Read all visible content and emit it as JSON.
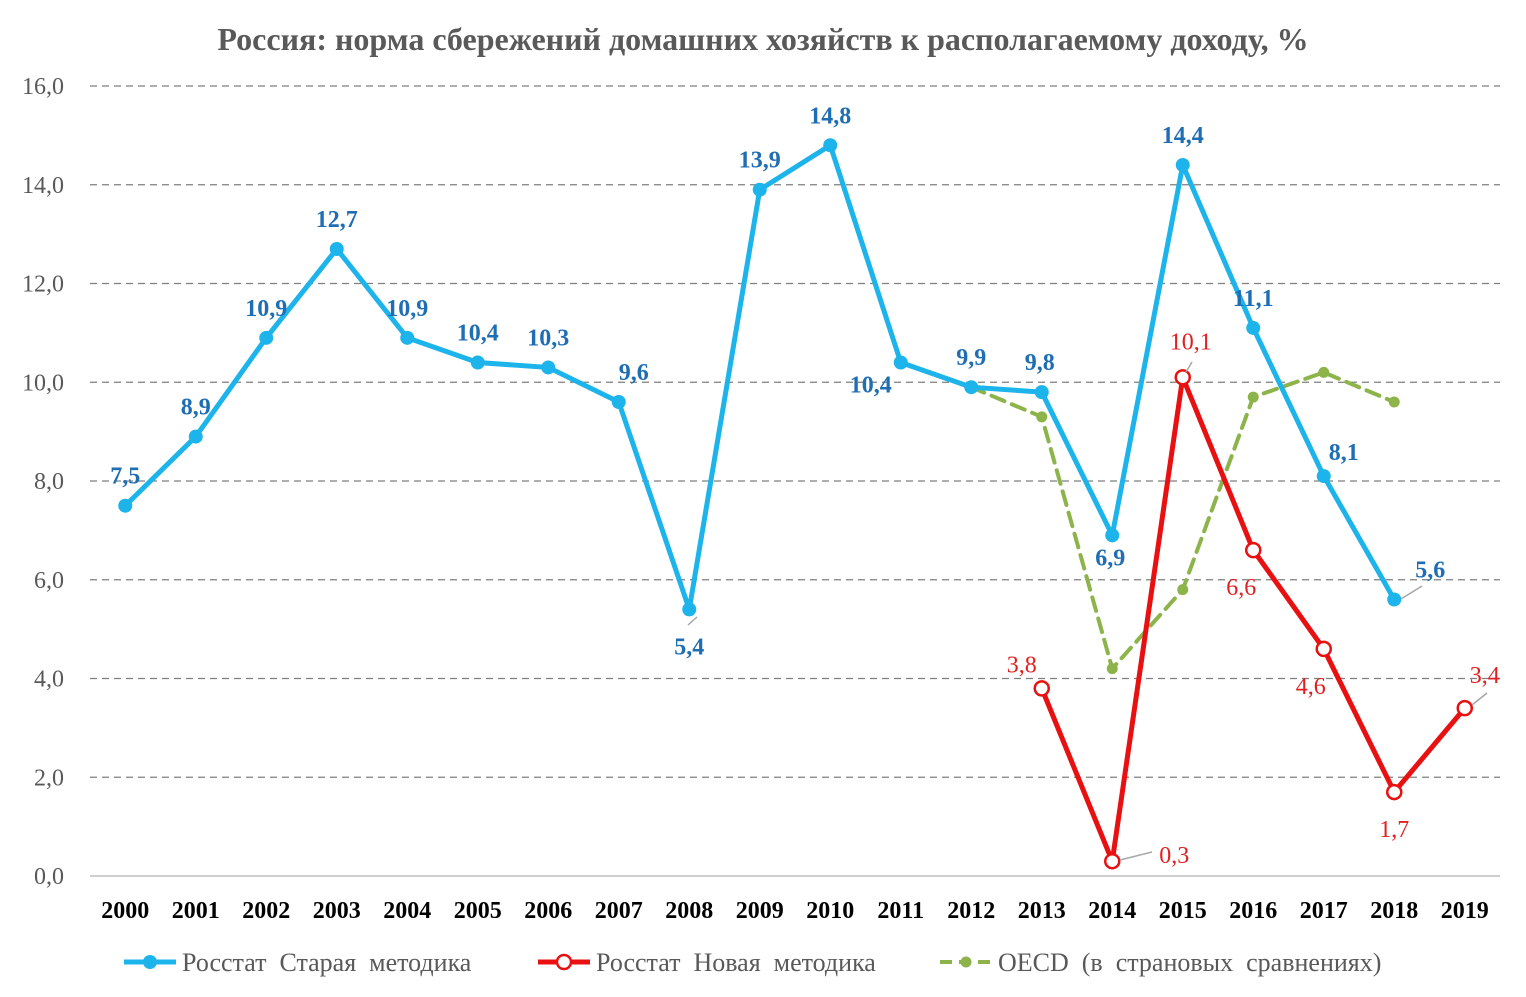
{
  "chart_data": {
    "type": "line",
    "title": "Россия: норма сбережений домашних хозяйств к располагаемому доходу, %",
    "xlabel": "",
    "ylabel": "",
    "ylim": [
      0,
      16
    ],
    "yticks": [
      "0,0",
      "2,0",
      "4,0",
      "6,0",
      "8,0",
      "10,0",
      "12,0",
      "14,0",
      "16,0"
    ],
    "categories": [
      "2000",
      "2001",
      "2002",
      "2003",
      "2004",
      "2005",
      "2006",
      "2007",
      "2008",
      "2009",
      "2010",
      "2011",
      "2012",
      "2013",
      "2014",
      "2015",
      "2016",
      "2017",
      "2018",
      "2019"
    ],
    "grid": true,
    "legend_position": "bottom",
    "series": [
      {
        "name": "Росстат  Старая  методика",
        "color": "#1cb4ea",
        "style": "solid",
        "marker": "filled-circle",
        "values": [
          7.5,
          8.9,
          10.9,
          12.7,
          10.9,
          10.4,
          10.3,
          9.6,
          5.4,
          13.9,
          14.8,
          10.4,
          9.9,
          9.8,
          6.9,
          14.4,
          11.1,
          8.1,
          5.6,
          null
        ],
        "labels": [
          "7,5",
          "8,9",
          "10,9",
          "12,7",
          "10,9",
          "10,4",
          "10,3",
          "9,6",
          "5,4",
          "13,9",
          "14,8",
          "10,4",
          "9,9",
          "9,8",
          "6,9",
          "14,4",
          "11,1",
          "8,1",
          "5,6",
          ""
        ]
      },
      {
        "name": "Росстат  Новая  методика",
        "color": "#e81010",
        "style": "solid",
        "marker": "open-circle",
        "values": [
          null,
          null,
          null,
          null,
          null,
          null,
          null,
          null,
          null,
          null,
          null,
          null,
          null,
          3.8,
          0.3,
          10.1,
          6.6,
          4.6,
          1.7,
          3.4
        ],
        "labels": [
          "",
          "",
          "",
          "",
          "",
          "",
          "",
          "",
          "",
          "",
          "",
          "",
          "",
          "3,8",
          "0,3",
          "10,1",
          "6,6",
          "4,6",
          "1,7",
          "3,4"
        ]
      },
      {
        "name": "OECD  (в  страновых  сравнениях)",
        "color": "#8db44a",
        "style": "dashed",
        "marker": "small-dot",
        "values": [
          null,
          null,
          null,
          null,
          null,
          null,
          null,
          null,
          null,
          null,
          null,
          null,
          9.9,
          9.3,
          4.2,
          5.8,
          9.7,
          10.2,
          9.6,
          null
        ],
        "labels": []
      }
    ]
  }
}
